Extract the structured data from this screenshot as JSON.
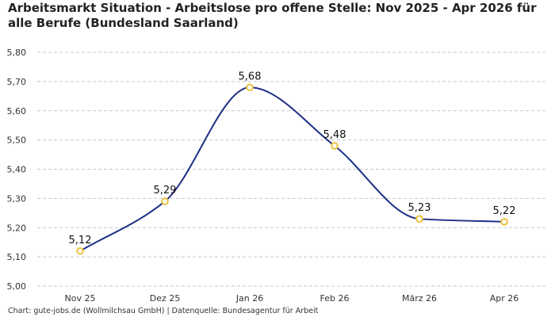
{
  "header": {
    "title": "Arbeitsmarkt Situation - Arbeitslose pro offene Stelle: Nov 2025 - Apr 2026 für alle Berufe (Bundesland Saarland)"
  },
  "footer": {
    "source": "Chart: gute-jobs.de (Wollmilchsau GmbH) | Datenquelle: Bundesagentur für Arbeit"
  },
  "chart_data": {
    "type": "line",
    "categories": [
      "Nov 25",
      "Dez 25",
      "Jan 26",
      "Feb 26",
      "März 26",
      "Apr 26"
    ],
    "values": [
      5.12,
      5.29,
      5.68,
      5.48,
      5.23,
      5.22
    ],
    "data_labels": [
      "5,12",
      "5,29",
      "5,68",
      "5,48",
      "5,23",
      "5,22"
    ],
    "yticks": [
      "5,00",
      "5,10",
      "5,20",
      "5,30",
      "5,40",
      "5,50",
      "5,60",
      "5,70",
      "5,80"
    ],
    "ylim": [
      5.0,
      5.8
    ],
    "grid": true,
    "legend": "none",
    "colors": {
      "line": "#1f2f86",
      "marker_stroke": "#e8c23a",
      "marker_fill": "#ffffff",
      "grid": "#c8c8c8"
    }
  }
}
